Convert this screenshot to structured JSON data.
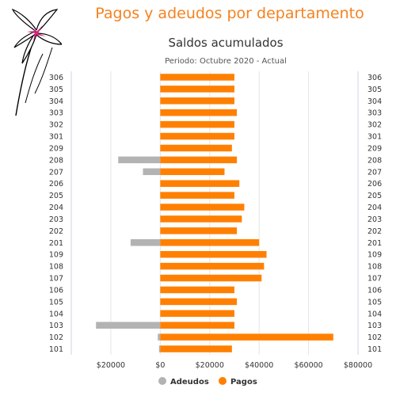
{
  "header": {
    "title": "Pagos y adeudos por departamento"
  },
  "colors": {
    "accent": "#f5821f",
    "pagos": "#ff8000",
    "adeudos": "#b3b3b3",
    "logo_flower": "#d6247f"
  },
  "icons": {
    "logo": "lily-flower-logo"
  },
  "chart_data": {
    "type": "bar",
    "orientation": "horizontal",
    "stacked": true,
    "title": "Saldos acumulados",
    "subtitle": "Periodo: Octubre 2020 - Actual",
    "categories": [
      "306",
      "305",
      "304",
      "303",
      "302",
      "301",
      "209",
      "208",
      "207",
      "206",
      "205",
      "204",
      "203",
      "202",
      "201",
      "109",
      "108",
      "107",
      "106",
      "105",
      "104",
      "103",
      "102",
      "101"
    ],
    "series": [
      {
        "name": "Adeudos",
        "values": [
          0,
          0,
          0,
          0,
          0,
          0,
          0,
          -17000,
          -7000,
          0,
          0,
          0,
          0,
          0,
          -12000,
          0,
          0,
          0,
          0,
          0,
          0,
          -26000,
          -1000,
          -500
        ]
      },
      {
        "name": "Pagos",
        "values": [
          30000,
          30000,
          30000,
          31000,
          30000,
          30000,
          29000,
          31000,
          26000,
          32000,
          30000,
          34000,
          33000,
          31000,
          40000,
          43000,
          42000,
          41000,
          30000,
          31000,
          30000,
          30000,
          70000,
          29000
        ]
      }
    ],
    "xlim": [
      -36000,
      80000
    ],
    "x_ticks": [
      -20000,
      0,
      20000,
      40000,
      60000,
      80000
    ],
    "x_tick_labels": [
      "$20000",
      "$0",
      "$20000",
      "$40000",
      "$60000",
      "$80000"
    ],
    "grid": true,
    "legend": {
      "position": "bottom",
      "items": [
        "Adeudos",
        "Pagos"
      ]
    }
  }
}
